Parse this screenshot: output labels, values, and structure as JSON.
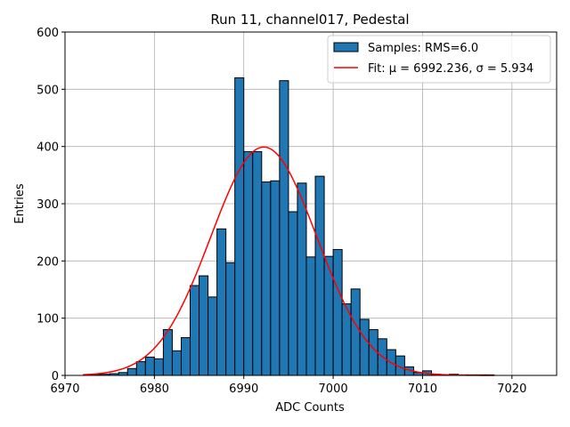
{
  "chart_data": {
    "type": "bar",
    "title": "Run 11, channel017, Pedestal",
    "xlabel": "ADC Counts",
    "ylabel": "Entries",
    "xlim": [
      6970,
      7025
    ],
    "ylim": [
      0,
      600
    ],
    "xticks": [
      6970,
      6980,
      6990,
      7000,
      7010,
      7020
    ],
    "yticks": [
      0,
      100,
      200,
      300,
      400,
      500,
      600
    ],
    "grid": true,
    "legend_position": "top-right",
    "histogram": {
      "name": "Samples: RMS=6.0",
      "color": "#1f77b4",
      "edge_color": "#000000",
      "bin_edges": [
        6973.0,
        6974.0,
        6975.0,
        6976.0,
        6977.0,
        6978.0,
        6979.0,
        6980.0,
        6981.0,
        6982.0,
        6983.0,
        6984.0,
        6985.0,
        6986.0,
        6987.0,
        6988.0,
        6989.0,
        6990.0,
        6991.0,
        6992.0,
        6993.0,
        6994.0,
        6995.0,
        6996.0,
        6997.0,
        6998.0,
        6999.0,
        7000.0,
        7001.0,
        7002.0,
        7003.0,
        7004.0,
        7005.0,
        7006.0,
        7007.0,
        7008.0,
        7009.0,
        7010.0,
        7011.0,
        7012.0,
        7013.0,
        7014.0,
        7015.0,
        7016.0,
        7017.0,
        7018.0
      ],
      "counts": [
        2,
        2,
        3,
        5,
        12,
        24,
        32,
        29,
        80,
        43,
        66,
        157,
        174,
        137,
        256,
        197,
        520,
        391,
        391,
        338,
        340,
        515,
        286,
        336,
        207,
        348,
        208,
        220,
        125,
        151,
        98,
        80,
        64,
        45,
        34,
        15,
        5,
        8,
        2,
        1,
        2,
        1,
        1,
        1,
        1
      ]
    },
    "fit": {
      "name": "Fit: μ = 6992.236, σ = 5.934",
      "color": "#ff0000",
      "mu": 6992.236,
      "sigma": 5.934,
      "amplitude": 399,
      "x_range": [
        6972,
        7018
      ]
    }
  }
}
